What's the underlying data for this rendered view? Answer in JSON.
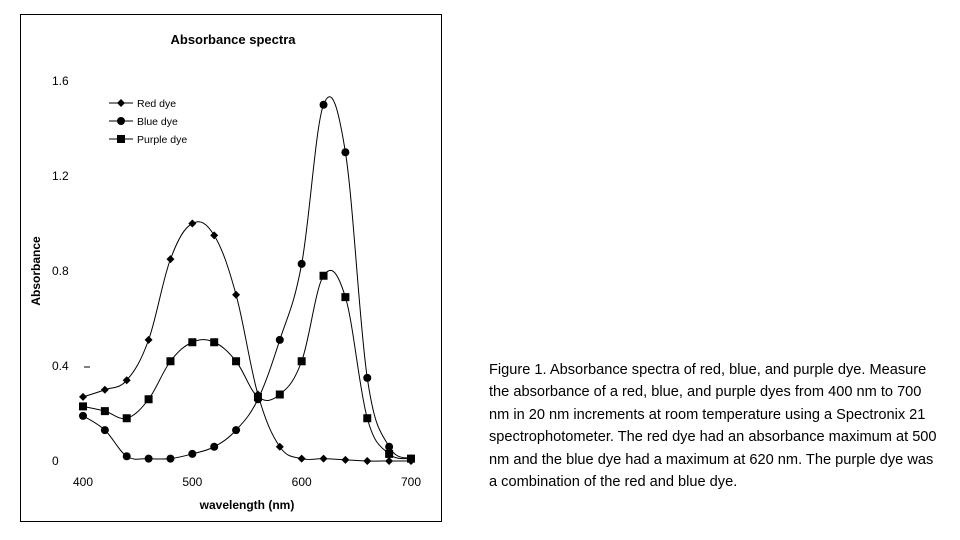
{
  "chart_data": {
    "type": "line",
    "title": "Absorbance spectra",
    "xlabel": "wavelength (nm)",
    "ylabel": "Absorbance",
    "xlim": [
      400,
      700
    ],
    "ylim": [
      0,
      1.6
    ],
    "x_ticks": [
      "400",
      "500",
      "600",
      "700"
    ],
    "y_ticks": [
      "0",
      "0.4",
      "0.8",
      "1.2",
      "1.6"
    ],
    "grid": false,
    "legend_position": "top-left",
    "x": [
      400,
      420,
      440,
      460,
      480,
      500,
      520,
      540,
      560,
      580,
      600,
      620,
      640,
      660,
      680,
      700
    ],
    "series": [
      {
        "name": "Red dye",
        "marker": "diamond",
        "values": [
          0.27,
          0.3,
          0.34,
          0.51,
          0.85,
          1.0,
          0.95,
          0.7,
          0.28,
          0.06,
          0.01,
          0.01,
          0.005,
          0.0,
          0.0,
          0.0
        ]
      },
      {
        "name": "Blue dye",
        "marker": "circle",
        "values": [
          0.19,
          0.13,
          0.02,
          0.01,
          0.01,
          0.03,
          0.06,
          0.13,
          0.26,
          0.51,
          0.83,
          1.5,
          1.3,
          0.35,
          0.06,
          0.01
        ]
      },
      {
        "name": "Purple dye",
        "marker": "square",
        "values": [
          0.23,
          0.21,
          0.18,
          0.26,
          0.42,
          0.5,
          0.5,
          0.42,
          0.27,
          0.28,
          0.42,
          0.78,
          0.69,
          0.18,
          0.03,
          0.01
        ]
      }
    ]
  },
  "caption": "Figure 1. Absorbance spectra of red, blue, and purple dye. Measure the absorbance of a red, blue, and purple dyes from 400 nm to 700 nm in 20 nm increments at room temperature using a Spectronix 21 spectrophotometer. The red dye had an absorbance maximum at 500 nm and the blue dye had a maximum at 620 nm. The purple dye was a combination of the red and blue dye."
}
